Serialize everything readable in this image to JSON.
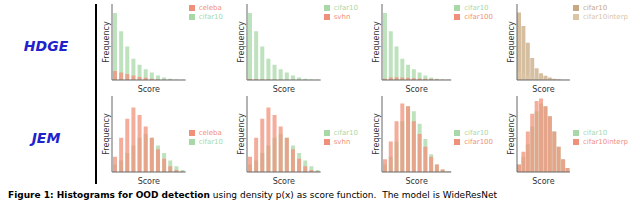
{
  "chart_data": [
    {
      "type": "bar",
      "xlabel": "Score",
      "ylabel": "Frequency",
      "categories": [
        null,
        null,
        null,
        null,
        null,
        null,
        null,
        null,
        null,
        null,
        null,
        null
      ],
      "tick_labels": false,
      "ylim": [
        0,
        25
      ],
      "legend": "upper right",
      "series": [
        {
          "name": "cifar10",
          "color": "#a8d8a8",
          "values": [
            22,
            16,
            11,
            7,
            5,
            3.5,
            2.5,
            1.5,
            0.8,
            0.4,
            0.2,
            0.1
          ]
        },
        {
          "name": "celeba",
          "color": "#f0907a",
          "values": [
            3,
            2.5,
            2,
            1.5,
            1,
            0.7,
            0.4,
            0.2,
            0.1,
            0.05,
            0.02,
            0.01
          ]
        }
      ]
    },
    {
      "type": "bar",
      "xlabel": "Score",
      "ylabel": "Frequency",
      "categories": [
        null,
        null,
        null,
        null,
        null,
        null,
        null,
        null,
        null,
        null,
        null,
        null
      ],
      "tick_labels": false,
      "ylim": [
        0,
        25
      ],
      "legend": "upper right",
      "series": [
        {
          "name": "cifar10",
          "color": "#a8d8a8",
          "values": [
            22,
            16,
            11,
            7,
            5,
            3.5,
            2.5,
            1.5,
            0.8,
            0.4,
            0.2,
            0.1
          ]
        },
        {
          "name": "svhn",
          "color": "#f0907a",
          "values": [
            0.3,
            0.25,
            0.2,
            0.18,
            0.15,
            0.12,
            0.1,
            0.08,
            0.06,
            0.04,
            0.02,
            0.01
          ]
        }
      ]
    },
    {
      "type": "bar",
      "xlabel": "Score",
      "ylabel": "Frequency",
      "categories": [
        null,
        null,
        null,
        null,
        null,
        null,
        null,
        null,
        null,
        null,
        null,
        null
      ],
      "tick_labels": false,
      "ylim": [
        0,
        25
      ],
      "legend": "upper right",
      "series": [
        {
          "name": "cifar10",
          "color": "#a8d8a8",
          "values": [
            22,
            16,
            11,
            7,
            5,
            3.5,
            2.5,
            1.5,
            0.8,
            0.4,
            0.2,
            0.1
          ]
        },
        {
          "name": "cifar100",
          "color": "#f0907a",
          "values": [
            0.4,
            0.8,
            0.9,
            0.8,
            0.7,
            0.6,
            0.5,
            0.4,
            0.3,
            0.2,
            0.1,
            0.05
          ]
        }
      ]
    },
    {
      "type": "bar",
      "xlabel": "Score",
      "ylabel": "Frequency",
      "categories": [
        null,
        null,
        null,
        null,
        null,
        null,
        null,
        null,
        null,
        null,
        null,
        null
      ],
      "tick_labels": false,
      "ylim": [
        0,
        45
      ],
      "legend": "upper right",
      "series": [
        {
          "name": "cifar10",
          "color": "#c8a882",
          "values": [
            40,
            32,
            22,
            13,
            7,
            4,
            2.5,
            1.5,
            0.8,
            0.4,
            0.2,
            0.1
          ]
        },
        {
          "name": "cifar10interp",
          "color": "#dbc5a5",
          "values": [
            5,
            4,
            3,
            2,
            1.5,
            1,
            0.6,
            0.3,
            0.15,
            0.07,
            0.03,
            0.01
          ]
        }
      ]
    },
    {
      "type": "bar",
      "xlabel": "Score",
      "ylabel": "Frequency",
      "categories": [
        null,
        null,
        null,
        null,
        null,
        null,
        null,
        null,
        null,
        null,
        null,
        null
      ],
      "tick_labels": false,
      "ylim": [
        0,
        20
      ],
      "legend": "center right",
      "series": [
        {
          "name": "cifar10",
          "color": "#a8d8a8",
          "values": [
            2,
            3,
            5,
            7,
            9,
            10,
            9,
            7,
            5,
            3,
            1.5,
            0.5
          ]
        },
        {
          "name": "celeba",
          "color": "#f0907a",
          "values": [
            4,
            9,
            14,
            17,
            15,
            12,
            9,
            6,
            3.5,
            1.5,
            0.5,
            0.1
          ]
        }
      ]
    },
    {
      "type": "bar",
      "xlabel": "Score",
      "ylabel": "Frequency",
      "categories": [
        null,
        null,
        null,
        null,
        null,
        null,
        null,
        null,
        null,
        null,
        null,
        null
      ],
      "tick_labels": false,
      "ylim": [
        0,
        20
      ],
      "legend": "center right",
      "series": [
        {
          "name": "cifar10",
          "color": "#a8d8a8",
          "values": [
            2,
            3,
            5,
            7,
            9,
            10,
            9,
            7,
            5,
            3,
            1.5,
            0.5
          ]
        },
        {
          "name": "svhn",
          "color": "#f0907a",
          "values": [
            4,
            9,
            14,
            17,
            15,
            12,
            9,
            6,
            3.5,
            1.5,
            0.5,
            0.1
          ]
        }
      ]
    },
    {
      "type": "bar",
      "xlabel": "Score",
      "ylabel": "Frequency",
      "categories": [
        null,
        null,
        null,
        null,
        null,
        null,
        null,
        null,
        null,
        null,
        null,
        null
      ],
      "tick_labels": false,
      "ylim": [
        0,
        15
      ],
      "legend": "center right",
      "series": [
        {
          "name": "cifar10",
          "color": "#a8d8a8",
          "values": [
            1.5,
            3,
            6,
            10,
            13,
            12,
            9.5,
            6.5,
            3.5,
            1.5,
            0.5,
            0.1
          ]
        },
        {
          "name": "cifar100",
          "color": "#f0907a",
          "values": [
            2.5,
            6,
            10,
            13.5,
            13,
            10,
            7.5,
            5,
            3,
            1.5,
            0.5,
            0.1
          ]
        }
      ]
    },
    {
      "type": "bar",
      "xlabel": "Score",
      "ylabel": "Frequency",
      "categories": [
        null,
        null,
        null,
        null,
        null,
        null,
        null,
        null,
        null,
        null,
        null,
        null
      ],
      "tick_labels": false,
      "ylim": [
        0,
        15
      ],
      "legend": "center right",
      "series": [
        {
          "name": "cifar10",
          "color": "#a8d8a8",
          "values": [
            1.5,
            3,
            5.5,
            9,
            12,
            13.5,
            13,
            11,
            8,
            5,
            2.5,
            0.8
          ]
        },
        {
          "name": "cifar10interp",
          "color": "#f0907a",
          "values": [
            1.5,
            4,
            8,
            11.5,
            14,
            14.5,
            13,
            11,
            8,
            5,
            2.5,
            0.8
          ]
        }
      ]
    }
  ],
  "annotations": [
    {
      "text": "HDGE",
      "color": "#2222cc"
    },
    {
      "text": "JEM",
      "color": "#2222cc"
    },
    {
      "text": "Figure 1: "
    },
    {
      "text": "Histograms for OOD detection"
    },
    {
      "text": " using density p(x) as score function.  The model is WideResNet"
    }
  ]
}
